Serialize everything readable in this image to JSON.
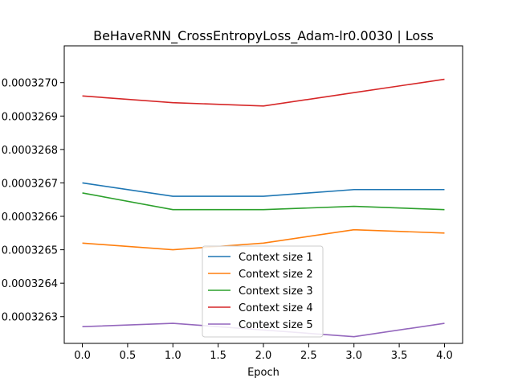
{
  "chart_data": {
    "type": "line",
    "title": "BeHaveRNN_CrossEntropyLoss_Adam-lr0.0030 | Loss",
    "xlabel": "Epoch",
    "ylabel": "",
    "x": [
      0,
      1,
      2,
      3,
      4
    ],
    "xlim": [
      -0.2,
      4.2
    ],
    "ylim": [
      0.00032622,
      0.00032711
    ],
    "x_ticks": [
      0.0,
      0.5,
      1.0,
      1.5,
      2.0,
      2.5,
      3.0,
      3.5,
      4.0
    ],
    "x_tick_labels": [
      "0.0",
      "0.5",
      "1.0",
      "1.5",
      "2.0",
      "2.5",
      "3.0",
      "3.5",
      "4.0"
    ],
    "y_ticks": [
      0.0003263,
      0.0003264,
      0.0003265,
      0.0003266,
      0.0003267,
      0.0003268,
      0.0003269,
      0.000327
    ],
    "y_tick_labels": [
      "0.0003263",
      "0.0003264",
      "0.0003265",
      "0.0003266",
      "0.0003267",
      "0.0003268",
      "0.0003269",
      "0.0003270"
    ],
    "grid": false,
    "legend_position": "lower-center",
    "series": [
      {
        "name": "Context size 1",
        "color": "#1f77b4",
        "values": [
          0.0003267,
          0.00032666,
          0.00032666,
          0.00032668,
          0.00032668
        ]
      },
      {
        "name": "Context size 2",
        "color": "#ff7f0e",
        "values": [
          0.00032652,
          0.0003265,
          0.00032652,
          0.00032656,
          0.00032655
        ]
      },
      {
        "name": "Context size 3",
        "color": "#2ca02c",
        "values": [
          0.00032667,
          0.00032662,
          0.00032662,
          0.00032663,
          0.00032662
        ]
      },
      {
        "name": "Context size 4",
        "color": "#d62728",
        "values": [
          0.00032696,
          0.00032694,
          0.00032693,
          0.00032697,
          0.00032701
        ]
      },
      {
        "name": "Context size 5",
        "color": "#9467bd",
        "values": [
          0.00032627,
          0.00032628,
          0.00032626,
          0.00032624,
          0.00032628
        ]
      }
    ]
  }
}
